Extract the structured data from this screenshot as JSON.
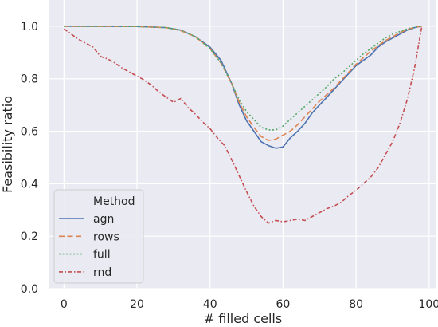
{
  "chart_data": {
    "type": "line",
    "xlabel": "# filled cells",
    "ylabel": "Feasibility ratio",
    "xlim": [
      -4,
      102
    ],
    "ylim": [
      0.0,
      1.1
    ],
    "xticks": [
      0,
      20,
      40,
      60,
      80,
      100
    ],
    "yticks": [
      0.0,
      0.2,
      0.4,
      0.6,
      0.8,
      1.0
    ],
    "xtick_labels": [
      "0",
      "20",
      "40",
      "60",
      "80",
      "100"
    ],
    "ytick_labels": [
      "0.0",
      "0.2",
      "0.4",
      "0.6",
      "0.8",
      "1.0"
    ],
    "grid": true,
    "background": "#eaeaf2",
    "legend": {
      "title": "Method",
      "placement": "lower-left"
    },
    "series": [
      {
        "name": "agn",
        "color": "#4c72b0",
        "dash": "solid",
        "x": [
          0,
          20,
          28,
          32,
          36,
          40,
          43,
          46,
          48,
          50,
          52,
          54,
          56,
          58,
          60,
          62,
          64,
          66,
          68,
          70,
          72,
          74,
          76,
          78,
          80,
          82,
          84,
          86,
          88,
          90,
          92,
          94,
          96,
          98
        ],
        "y": [
          1.0,
          0.999,
          0.995,
          0.985,
          0.96,
          0.92,
          0.87,
          0.78,
          0.7,
          0.64,
          0.6,
          0.56,
          0.545,
          0.535,
          0.54,
          0.575,
          0.6,
          0.63,
          0.67,
          0.7,
          0.73,
          0.76,
          0.79,
          0.82,
          0.85,
          0.87,
          0.89,
          0.92,
          0.94,
          0.955,
          0.97,
          0.985,
          0.995,
          1.0
        ]
      },
      {
        "name": "rows",
        "color": "#dd8452",
        "dash": "dashed",
        "x": [
          0,
          20,
          28,
          32,
          36,
          40,
          43,
          46,
          48,
          50,
          52,
          54,
          56,
          58,
          60,
          62,
          64,
          66,
          68,
          70,
          72,
          74,
          76,
          78,
          80,
          82,
          84,
          86,
          88,
          90,
          92,
          94,
          96,
          98
        ],
        "y": [
          1.0,
          0.999,
          0.995,
          0.983,
          0.96,
          0.915,
          0.86,
          0.78,
          0.71,
          0.655,
          0.615,
          0.58,
          0.565,
          0.57,
          0.585,
          0.6,
          0.625,
          0.655,
          0.685,
          0.715,
          0.74,
          0.765,
          0.795,
          0.825,
          0.855,
          0.88,
          0.905,
          0.925,
          0.945,
          0.96,
          0.975,
          0.988,
          0.996,
          1.0
        ]
      },
      {
        "name": "full",
        "color": "#55a868",
        "dash": "dotted",
        "x": [
          0,
          20,
          28,
          32,
          36,
          40,
          43,
          46,
          48,
          50,
          52,
          54,
          56,
          58,
          60,
          62,
          64,
          66,
          68,
          70,
          72,
          74,
          76,
          78,
          80,
          82,
          84,
          86,
          88,
          90,
          92,
          94,
          96,
          98
        ],
        "y": [
          1.0,
          0.999,
          0.995,
          0.985,
          0.96,
          0.915,
          0.86,
          0.78,
          0.72,
          0.675,
          0.645,
          0.615,
          0.605,
          0.605,
          0.62,
          0.645,
          0.67,
          0.695,
          0.72,
          0.745,
          0.77,
          0.8,
          0.82,
          0.845,
          0.87,
          0.895,
          0.915,
          0.935,
          0.955,
          0.97,
          0.98,
          0.99,
          0.997,
          1.0
        ]
      },
      {
        "name": "rnd",
        "color": "#c44e52",
        "dash": "dashdot",
        "x": [
          0,
          2,
          4,
          6,
          8,
          10,
          12,
          14,
          16,
          18,
          20,
          22,
          24,
          26,
          28,
          30,
          32,
          34,
          36,
          38,
          40,
          42,
          44,
          46,
          48,
          50,
          52,
          54,
          56,
          58,
          60,
          62,
          64,
          66,
          68,
          70,
          72,
          74,
          76,
          78,
          80,
          82,
          84,
          86,
          88,
          90,
          92,
          94,
          96,
          98
        ],
        "y": [
          0.99,
          0.97,
          0.95,
          0.935,
          0.92,
          0.885,
          0.875,
          0.86,
          0.84,
          0.825,
          0.81,
          0.795,
          0.775,
          0.75,
          0.73,
          0.71,
          0.725,
          0.69,
          0.665,
          0.635,
          0.61,
          0.575,
          0.545,
          0.49,
          0.43,
          0.37,
          0.315,
          0.275,
          0.25,
          0.26,
          0.255,
          0.26,
          0.265,
          0.26,
          0.275,
          0.29,
          0.305,
          0.315,
          0.33,
          0.355,
          0.375,
          0.4,
          0.425,
          0.46,
          0.51,
          0.56,
          0.63,
          0.72,
          0.84,
          1.0
        ]
      }
    ]
  }
}
